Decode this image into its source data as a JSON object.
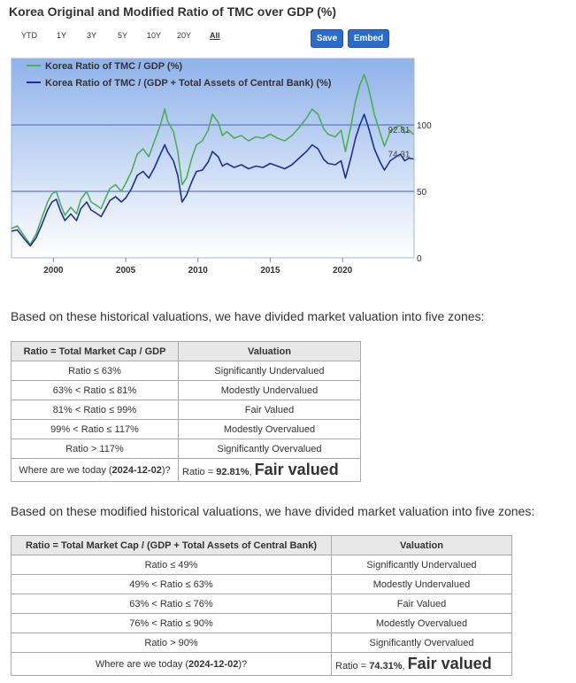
{
  "chart": {
    "title": "Korea Original and Modified Ratio of TMC over GDP (%)",
    "range_buttons": [
      "YTD",
      "1Y",
      "3Y",
      "5Y",
      "10Y",
      "20Y",
      "All"
    ],
    "active_range": "All",
    "save_label": "Save",
    "embed_label": "Embed"
  },
  "chart_data": {
    "type": "line",
    "title": "Korea Original and Modified Ratio of TMC over GDP (%)",
    "xlim": [
      1997.1,
      2024.95
    ],
    "ylim": [
      0,
      150
    ],
    "x_ticks": [
      2000,
      2005,
      2010,
      2015,
      2020
    ],
    "y_ticks": [
      0,
      50,
      100
    ],
    "grid": true,
    "legend": "top-left",
    "series": [
      {
        "name": "Korea Ratio of TMC / GDP (%)",
        "color": "#4caf50",
        "points": [
          [
            1997.1,
            22
          ],
          [
            1997.5,
            24
          ],
          [
            1998.0,
            16
          ],
          [
            1998.4,
            10
          ],
          [
            1998.8,
            18
          ],
          [
            1999.2,
            30
          ],
          [
            1999.6,
            42
          ],
          [
            1999.9,
            48
          ],
          [
            2000.2,
            50
          ],
          [
            2000.5,
            40
          ],
          [
            2000.8,
            32
          ],
          [
            2001.2,
            38
          ],
          [
            2001.6,
            33
          ],
          [
            2001.9,
            44
          ],
          [
            2002.3,
            50
          ],
          [
            2002.6,
            42
          ],
          [
            2002.9,
            40
          ],
          [
            2003.3,
            37
          ],
          [
            2003.6,
            45
          ],
          [
            2003.9,
            52
          ],
          [
            2004.3,
            55
          ],
          [
            2004.7,
            50
          ],
          [
            2005.0,
            56
          ],
          [
            2005.4,
            65
          ],
          [
            2005.8,
            78
          ],
          [
            2006.2,
            82
          ],
          [
            2006.6,
            76
          ],
          [
            2007.0,
            88
          ],
          [
            2007.4,
            100
          ],
          [
            2007.7,
            112
          ],
          [
            2007.9,
            103
          ],
          [
            2008.3,
            95
          ],
          [
            2008.6,
            80
          ],
          [
            2008.9,
            55
          ],
          [
            2009.2,
            60
          ],
          [
            2009.6,
            76
          ],
          [
            2009.9,
            85
          ],
          [
            2010.3,
            88
          ],
          [
            2010.7,
            96
          ],
          [
            2011.0,
            108
          ],
          [
            2011.4,
            102
          ],
          [
            2011.7,
            92
          ],
          [
            2012.0,
            95
          ],
          [
            2012.5,
            90
          ],
          [
            2013.0,
            92
          ],
          [
            2013.5,
            88
          ],
          [
            2014.0,
            91
          ],
          [
            2014.5,
            90
          ],
          [
            2015.0,
            93
          ],
          [
            2015.5,
            90
          ],
          [
            2016.0,
            88
          ],
          [
            2016.5,
            92
          ],
          [
            2017.0,
            98
          ],
          [
            2017.5,
            105
          ],
          [
            2017.9,
            112
          ],
          [
            2018.3,
            108
          ],
          [
            2018.7,
            97
          ],
          [
            2019.0,
            93
          ],
          [
            2019.5,
            91
          ],
          [
            2019.9,
            96
          ],
          [
            2020.2,
            80
          ],
          [
            2020.6,
            100
          ],
          [
            2020.9,
            118
          ],
          [
            2021.2,
            130
          ],
          [
            2021.5,
            138
          ],
          [
            2021.8,
            128
          ],
          [
            2022.2,
            108
          ],
          [
            2022.6,
            94
          ],
          [
            2022.9,
            84
          ],
          [
            2023.3,
            95
          ],
          [
            2023.7,
            98
          ],
          [
            2024.0,
            100
          ],
          [
            2024.3,
            94
          ],
          [
            2024.6,
            96
          ],
          [
            2024.92,
            92.81
          ]
        ]
      },
      {
        "name": "Korea Ratio of TMC / (GDP + Total Assets of Central Bank) (%)",
        "color": "#1c2f9e",
        "points": [
          [
            1997.1,
            20
          ],
          [
            1997.5,
            21
          ],
          [
            1998.0,
            14
          ],
          [
            1998.4,
            9
          ],
          [
            1998.8,
            15
          ],
          [
            1999.2,
            25
          ],
          [
            1999.6,
            36
          ],
          [
            1999.9,
            42
          ],
          [
            2000.2,
            44
          ],
          [
            2000.5,
            35
          ],
          [
            2000.8,
            28
          ],
          [
            2001.2,
            33
          ],
          [
            2001.6,
            28
          ],
          [
            2001.9,
            37
          ],
          [
            2002.3,
            42
          ],
          [
            2002.6,
            36
          ],
          [
            2002.9,
            34
          ],
          [
            2003.3,
            31
          ],
          [
            2003.6,
            37
          ],
          [
            2003.9,
            43
          ],
          [
            2004.3,
            46
          ],
          [
            2004.7,
            42
          ],
          [
            2005.0,
            45
          ],
          [
            2005.4,
            52
          ],
          [
            2005.8,
            62
          ],
          [
            2006.2,
            65
          ],
          [
            2006.6,
            60
          ],
          [
            2007.0,
            68
          ],
          [
            2007.4,
            78
          ],
          [
            2007.7,
            85
          ],
          [
            2007.9,
            80
          ],
          [
            2008.3,
            73
          ],
          [
            2008.6,
            62
          ],
          [
            2008.9,
            42
          ],
          [
            2009.2,
            47
          ],
          [
            2009.6,
            58
          ],
          [
            2009.9,
            65
          ],
          [
            2010.3,
            66
          ],
          [
            2010.7,
            72
          ],
          [
            2011.0,
            80
          ],
          [
            2011.4,
            76
          ],
          [
            2011.7,
            69
          ],
          [
            2012.0,
            71
          ],
          [
            2012.5,
            68
          ],
          [
            2013.0,
            70
          ],
          [
            2013.5,
            67
          ],
          [
            2014.0,
            69
          ],
          [
            2014.5,
            68
          ],
          [
            2015.0,
            71
          ],
          [
            2015.5,
            69
          ],
          [
            2016.0,
            67
          ],
          [
            2016.5,
            70
          ],
          [
            2017.0,
            75
          ],
          [
            2017.5,
            80
          ],
          [
            2017.9,
            85
          ],
          [
            2018.3,
            82
          ],
          [
            2018.7,
            74
          ],
          [
            2019.0,
            71
          ],
          [
            2019.5,
            70
          ],
          [
            2019.9,
            73
          ],
          [
            2020.2,
            60
          ],
          [
            2020.6,
            76
          ],
          [
            2020.9,
            90
          ],
          [
            2021.2,
            100
          ],
          [
            2021.5,
            108
          ],
          [
            2021.8,
            98
          ],
          [
            2022.2,
            82
          ],
          [
            2022.6,
            72
          ],
          [
            2022.9,
            66
          ],
          [
            2023.3,
            73
          ],
          [
            2023.7,
            76
          ],
          [
            2024.0,
            78
          ],
          [
            2024.3,
            73
          ],
          [
            2024.6,
            75
          ],
          [
            2024.92,
            74.31
          ]
        ]
      }
    ],
    "end_labels": [
      "92.81",
      "74.31"
    ]
  },
  "zones1": {
    "intro": "Based on these historical valuations, we have divided market valuation into five zones:",
    "header": [
      "Ratio = Total Market Cap / GDP",
      "Valuation"
    ],
    "rows": [
      [
        "Ratio ≤ 63%",
        "Significantly Undervalued"
      ],
      [
        "63% < Ratio ≤ 81%",
        "Modestly Undervalued"
      ],
      [
        "81% < Ratio ≤ 99%",
        "Fair Valued"
      ],
      [
        "99% < Ratio ≤ 117%",
        "Modestly Overvalued"
      ],
      [
        "Ratio > 117%",
        "Significantly Overvalued"
      ]
    ],
    "today_prefix": "Where are we today (",
    "today_date": "2024-12-02",
    "today_suffix": ")?",
    "ratio_prefix": "Ratio = ",
    "ratio_value": "92.81%",
    "ratio_suffix": ", ",
    "verdict": "Fair valued"
  },
  "zones2": {
    "intro": "Based on these modified historical valuations, we have divided market valuation into five zones:",
    "header": [
      "Ratio = Total Market Cap / (GDP + Total Assets of Central Bank)",
      "Valuation"
    ],
    "rows": [
      [
        "Ratio ≤ 49%",
        "Significantly Undervalued"
      ],
      [
        "49% < Ratio ≤ 63%",
        "Modestly Undervalued"
      ],
      [
        "63% < Ratio ≤ 76%",
        "Fair Valued"
      ],
      [
        "76% < Ratio ≤ 90%",
        "Modestly Overvalued"
      ],
      [
        "Ratio > 90%",
        "Significantly Overvalued"
      ]
    ],
    "today_prefix": "Where are we today (",
    "today_date": "2024-12-02",
    "today_suffix": ")?",
    "ratio_prefix": "Ratio = ",
    "ratio_value": "74.31%",
    "ratio_suffix": ", ",
    "verdict": "Fair valued"
  }
}
